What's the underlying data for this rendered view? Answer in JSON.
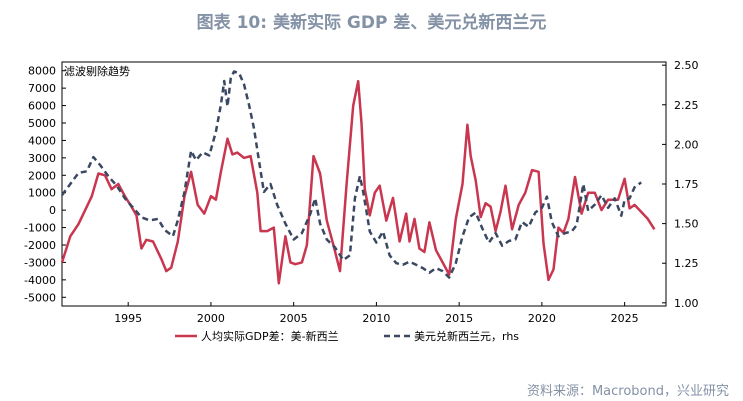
{
  "title": "图表 10: 美新实际 GDP 差、美元兑新西兰元",
  "source": "资料来源：Macrobond，兴业研究",
  "chart_data": {
    "type": "line",
    "annotation": "滤波剔除趋势",
    "xlim": [
      1991.0,
      2027.5
    ],
    "x_ticks": [
      1995,
      2000,
      2005,
      2010,
      2015,
      2020,
      2025
    ],
    "ylim_left": [
      -5500,
      8500
    ],
    "y_ticks_left": [
      -5000,
      -4000,
      -3000,
      -2000,
      -1000,
      0,
      1000,
      2000,
      3000,
      4000,
      5000,
      6000,
      7000,
      8000
    ],
    "ylim_right": [
      0.98,
      2.52
    ],
    "y_ticks_right": [
      "1.00",
      "1.25",
      "1.50",
      "1.75",
      "2.00",
      "2.25",
      "2.50"
    ],
    "colors": {
      "gdp": "#c8374f",
      "fx": "#3a4862"
    },
    "series": [
      {
        "name": "人均实际GDP差：美-新西兰",
        "axis": "left",
        "x": [
          1991.0,
          1991.5,
          1992.0,
          1992.5,
          1992.8,
          1993.2,
          1993.6,
          1994.0,
          1994.4,
          1994.8,
          1995.2,
          1995.5,
          1995.8,
          1996.1,
          1996.5,
          1997.0,
          1997.3,
          1997.6,
          1998.0,
          1998.4,
          1998.8,
          1999.2,
          1999.6,
          2000.0,
          2000.3,
          2000.6,
          2001.0,
          2001.3,
          2001.6,
          2002.0,
          2002.4,
          2002.8,
          2003.0,
          2003.4,
          2003.8,
          2004.1,
          2004.5,
          2004.8,
          2005.1,
          2005.5,
          2005.8,
          2006.2,
          2006.6,
          2007.0,
          2007.4,
          2007.8,
          2008.2,
          2008.6,
          2008.9,
          2009.1,
          2009.3,
          2009.6,
          2009.9,
          2010.2,
          2010.6,
          2011.0,
          2011.4,
          2011.8,
          2012.0,
          2012.3,
          2012.6,
          2012.9,
          2013.2,
          2013.6,
          2014.0,
          2014.4,
          2014.8,
          2015.2,
          2015.5,
          2015.7,
          2016.0,
          2016.3,
          2016.6,
          2016.9,
          2017.2,
          2017.5,
          2017.8,
          2018.2,
          2018.6,
          2019.0,
          2019.4,
          2019.8,
          2020.1,
          2020.4,
          2020.7,
          2021.0,
          2021.3,
          2021.6,
          2022.0,
          2022.4,
          2022.8,
          2023.2,
          2023.6,
          2024.0,
          2024.3,
          2024.6,
          2025.0,
          2025.3,
          2025.6,
          2026.0,
          2026.4,
          2026.8
        ],
        "values": [
          -3000,
          -1500,
          -800,
          200,
          800,
          2100,
          2000,
          1200,
          1500,
          800,
          200,
          -300,
          -2200,
          -1700,
          -1800,
          -2800,
          -3500,
          -3300,
          -1800,
          800,
          2200,
          300,
          -200,
          800,
          600,
          2200,
          4100,
          3200,
          3300,
          3000,
          3100,
          1000,
          -1200,
          -1200,
          -1000,
          -4200,
          -1500,
          -3000,
          -3100,
          -3000,
          -2000,
          3100,
          2100,
          -600,
          -2000,
          -3500,
          1500,
          6000,
          7400,
          5000,
          1200,
          -300,
          1000,
          1400,
          -600,
          700,
          -1800,
          -200,
          -1800,
          -500,
          -2200,
          -2400,
          -700,
          -2300,
          -3000,
          -3700,
          -500,
          1500,
          4900,
          3100,
          1700,
          -400,
          400,
          200,
          -1200,
          -100,
          1400,
          -1100,
          300,
          1000,
          2300,
          2200,
          -1900,
          -4000,
          -3400,
          -1000,
          -1300,
          -500,
          1900,
          -200,
          1000,
          1000,
          0,
          600,
          600,
          600,
          1800,
          100,
          300,
          -100,
          -500,
          -1100
        ]
      },
      {
        "name": "美元兑新西兰元，rhs",
        "axis": "right",
        "x": [
          1991.0,
          1991.5,
          1992.0,
          1992.5,
          1992.9,
          1993.3,
          1993.8,
          1994.3,
          1994.8,
          1995.3,
          1995.8,
          1996.3,
          1996.8,
          1997.2,
          1997.7,
          1998.0,
          1998.4,
          1998.8,
          1999.1,
          1999.5,
          1999.9,
          2000.3,
          2000.6,
          2000.8,
          2001.0,
          2001.2,
          2001.4,
          2001.7,
          2002.0,
          2002.3,
          2002.6,
          2002.9,
          2003.2,
          2003.6,
          2004.0,
          2004.5,
          2005.0,
          2005.5,
          2006.0,
          2006.3,
          2006.6,
          2007.0,
          2007.5,
          2008.0,
          2008.4,
          2008.7,
          2009.0,
          2009.2,
          2009.6,
          2010.0,
          2010.4,
          2010.8,
          2011.2,
          2011.6,
          2012.0,
          2012.4,
          2012.8,
          2013.2,
          2013.6,
          2014.0,
          2014.4,
          2014.8,
          2015.2,
          2015.6,
          2016.0,
          2016.4,
          2016.8,
          2017.2,
          2017.6,
          2018.0,
          2018.4,
          2018.8,
          2019.2,
          2019.6,
          2020.0,
          2020.3,
          2020.6,
          2021.0,
          2021.4,
          2021.8,
          2022.1,
          2022.5,
          2022.8,
          2023.2,
          2023.6,
          2024.0,
          2024.4,
          2024.8,
          2025.0,
          2025.3,
          2025.6,
          2026.0
        ],
        "values": [
          1.68,
          1.75,
          1.82,
          1.83,
          1.92,
          1.87,
          1.8,
          1.74,
          1.66,
          1.6,
          1.54,
          1.52,
          1.53,
          1.46,
          1.42,
          1.52,
          1.7,
          1.96,
          1.9,
          1.95,
          1.93,
          2.08,
          2.25,
          2.4,
          2.24,
          2.42,
          2.46,
          2.45,
          2.38,
          2.25,
          2.1,
          1.9,
          1.7,
          1.75,
          1.62,
          1.5,
          1.4,
          1.44,
          1.56,
          1.66,
          1.5,
          1.4,
          1.35,
          1.27,
          1.3,
          1.66,
          1.8,
          1.7,
          1.45,
          1.38,
          1.45,
          1.3,
          1.25,
          1.24,
          1.26,
          1.24,
          1.22,
          1.19,
          1.22,
          1.2,
          1.16,
          1.25,
          1.42,
          1.54,
          1.57,
          1.47,
          1.38,
          1.44,
          1.36,
          1.39,
          1.4,
          1.51,
          1.48,
          1.57,
          1.6,
          1.67,
          1.51,
          1.42,
          1.44,
          1.45,
          1.49,
          1.75,
          1.58,
          1.62,
          1.68,
          1.6,
          1.66,
          1.55,
          1.65,
          1.66,
          1.73,
          1.76
        ]
      }
    ]
  }
}
